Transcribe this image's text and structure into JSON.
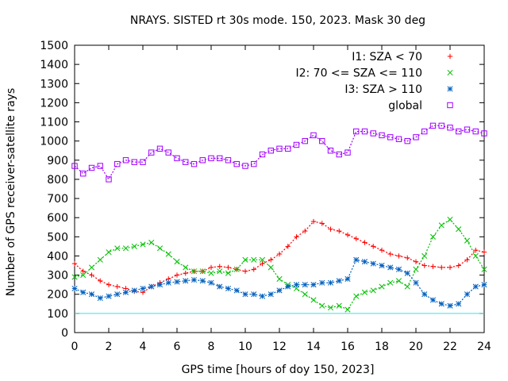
{
  "chart_data": {
    "type": "scatter",
    "title": "NRAYS. SISTED rt 30s mode. 150, 2023. Mask 30 deg",
    "xlabel": "GPS time [hours of doy 150, 2023]",
    "ylabel": "Number of GPS receiver-satellite rays",
    "xlim": [
      0,
      24
    ],
    "ylim": [
      0,
      1500
    ],
    "xticks": [
      0,
      2,
      4,
      6,
      8,
      10,
      12,
      14,
      16,
      18,
      20,
      22,
      24
    ],
    "yticks": [
      0,
      100,
      200,
      300,
      400,
      500,
      600,
      700,
      800,
      900,
      1000,
      1100,
      1200,
      1300,
      1400,
      1500
    ],
    "legend_position": "top-right",
    "reference_line": {
      "y": 100,
      "color": "#40e0e0"
    },
    "series": [
      {
        "name": "I1: SZA < 70",
        "color": "#ff0000",
        "marker": "+",
        "x": [
          0,
          0.5,
          1,
          1.5,
          2,
          2.5,
          3,
          3.5,
          4,
          4.5,
          5,
          5.5,
          6,
          6.5,
          7,
          7.5,
          8,
          8.5,
          9,
          9.5,
          10,
          10.5,
          11,
          11.5,
          12,
          12.5,
          13,
          13.5,
          14,
          14.5,
          15,
          15.5,
          16,
          16.5,
          17,
          17.5,
          18,
          18.5,
          19,
          19.5,
          20,
          20.5,
          21,
          21.5,
          22,
          22.5,
          23,
          23.5,
          24
        ],
        "values": [
          360,
          320,
          300,
          270,
          250,
          240,
          230,
          215,
          210,
          240,
          260,
          280,
          300,
          310,
          320,
          320,
          340,
          345,
          340,
          330,
          320,
          330,
          360,
          380,
          410,
          450,
          500,
          530,
          580,
          570,
          540,
          530,
          510,
          490,
          470,
          450,
          430,
          410,
          400,
          390,
          370,
          350,
          345,
          340,
          340,
          350,
          380,
          430,
          420
        ]
      },
      {
        "name": "I2: 70 <= SZA <= 110",
        "color": "#00c000",
        "marker": "x",
        "x": [
          0,
          0.5,
          1,
          1.5,
          2,
          2.5,
          3,
          3.5,
          4,
          4.5,
          5,
          5.5,
          6,
          6.5,
          7,
          7.5,
          8,
          8.5,
          9,
          9.5,
          10,
          10.5,
          11,
          11.5,
          12,
          12.5,
          13,
          13.5,
          14,
          14.5,
          15,
          15.5,
          16,
          16.5,
          17,
          17.5,
          18,
          18.5,
          19,
          19.5,
          20,
          20.5,
          21,
          21.5,
          22,
          22.5,
          23,
          23.5,
          24
        ],
        "values": [
          290,
          300,
          340,
          380,
          420,
          440,
          440,
          450,
          460,
          470,
          440,
          410,
          370,
          340,
          320,
          320,
          310,
          320,
          310,
          330,
          380,
          380,
          380,
          340,
          280,
          250,
          230,
          200,
          170,
          140,
          130,
          140,
          120,
          190,
          210,
          220,
          240,
          260,
          270,
          240,
          330,
          400,
          500,
          560,
          590,
          540,
          480,
          400,
          330
        ]
      },
      {
        "name": "I3: SZA > 110",
        "color": "#0060c0",
        "marker": "*",
        "x": [
          0,
          0.5,
          1,
          1.5,
          2,
          2.5,
          3,
          3.5,
          4,
          4.5,
          5,
          5.5,
          6,
          6.5,
          7,
          7.5,
          8,
          8.5,
          9,
          9.5,
          10,
          10.5,
          11,
          11.5,
          12,
          12.5,
          13,
          13.5,
          14,
          14.5,
          15,
          15.5,
          16,
          16.5,
          17,
          17.5,
          18,
          18.5,
          19,
          19.5,
          20,
          20.5,
          21,
          21.5,
          22,
          22.5,
          23,
          23.5,
          24
        ],
        "values": [
          230,
          210,
          200,
          180,
          190,
          200,
          210,
          220,
          230,
          240,
          250,
          260,
          265,
          270,
          275,
          270,
          260,
          240,
          230,
          220,
          200,
          200,
          190,
          200,
          220,
          240,
          250,
          250,
          250,
          260,
          260,
          270,
          280,
          380,
          370,
          360,
          350,
          340,
          330,
          310,
          260,
          200,
          170,
          150,
          140,
          150,
          200,
          240,
          250
        ]
      },
      {
        "name": "global",
        "color": "#a000ff",
        "marker": "square",
        "x": [
          0,
          0.5,
          1,
          1.5,
          2,
          2.5,
          3,
          3.5,
          4,
          4.5,
          5,
          5.5,
          6,
          6.5,
          7,
          7.5,
          8,
          8.5,
          9,
          9.5,
          10,
          10.5,
          11,
          11.5,
          12,
          12.5,
          13,
          13.5,
          14,
          14.5,
          15,
          15.5,
          16,
          16.5,
          17,
          17.5,
          18,
          18.5,
          19,
          19.5,
          20,
          20.5,
          21,
          21.5,
          22,
          22.5,
          23,
          23.5,
          24
        ],
        "values": [
          870,
          830,
          860,
          870,
          800,
          880,
          900,
          890,
          890,
          940,
          960,
          940,
          910,
          890,
          880,
          900,
          910,
          910,
          900,
          880,
          870,
          880,
          930,
          950,
          960,
          960,
          980,
          1000,
          1030,
          1000,
          950,
          930,
          940,
          1050,
          1050,
          1040,
          1030,
          1020,
          1010,
          1000,
          1020,
          1050,
          1080,
          1080,
          1070,
          1050,
          1060,
          1050,
          1040
        ]
      }
    ]
  }
}
